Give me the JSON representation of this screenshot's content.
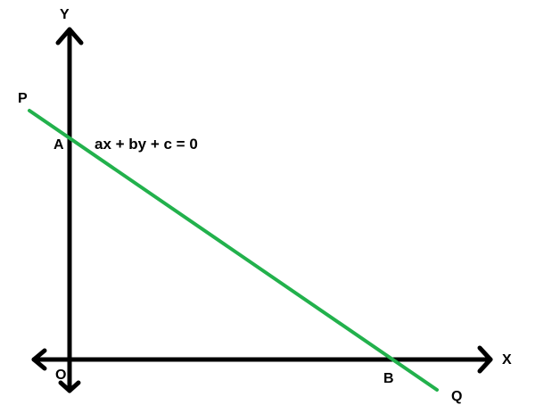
{
  "labels": {
    "y_axis": "Y",
    "x_axis": "X",
    "origin": "O",
    "point_p": "P",
    "point_q": "Q",
    "point_a": "A",
    "point_b": "B"
  },
  "equation": "ax + by + c = 0",
  "colors": {
    "axes": "#000000",
    "line": "#22b14c",
    "text": "#000000",
    "background": "#ffffff"
  }
}
